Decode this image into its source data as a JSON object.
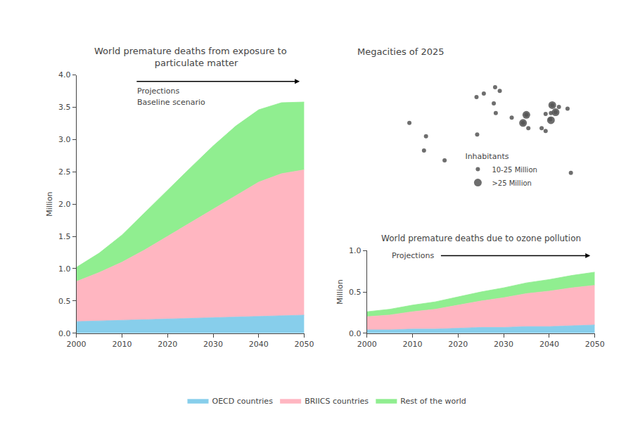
{
  "chart_data": [
    {
      "type": "area",
      "stacked": true,
      "title": "World premature deaths from exposure to\n    particulate matter",
      "ylabel": "Million",
      "x": [
        2000,
        2005,
        2010,
        2015,
        2020,
        2025,
        2030,
        2035,
        2040,
        2045,
        2050
      ],
      "series": [
        {
          "name": "OECD countries",
          "color": "#87ceeb",
          "values": [
            0.18,
            0.19,
            0.2,
            0.21,
            0.22,
            0.23,
            0.24,
            0.25,
            0.26,
            0.27,
            0.28
          ]
        },
        {
          "name": "BRIICS countries",
          "color": "#ffb6c1",
          "values": [
            0.62,
            0.75,
            0.9,
            1.08,
            1.28,
            1.48,
            1.68,
            1.88,
            2.08,
            2.2,
            2.25
          ]
        },
        {
          "name": "Rest of the world",
          "color": "#90ee90",
          "values": [
            0.22,
            0.3,
            0.42,
            0.58,
            0.72,
            0.85,
            0.98,
            1.08,
            1.12,
            1.1,
            1.05
          ]
        }
      ],
      "xlim": [
        2000,
        2050
      ],
      "xticks": [
        2000,
        2010,
        2020,
        2030,
        2040,
        2050
      ],
      "ylim": [
        0,
        4.0
      ],
      "yticks": [
        {
          "value": 0,
          "label": "0.0"
        },
        0.5,
        {
          "value": 1,
          "label": "1.0"
        },
        1.5,
        {
          "value": 2,
          "label": "2.0"
        },
        2.5,
        {
          "value": 3,
          "label": "3.0"
        },
        3.5,
        {
          "value": 4,
          "label": "4.0"
        }
      ],
      "annotations": [
        "Projections",
        "Baseline scenario"
      ],
      "legend": "bottom",
      "grid": false
    },
    {
      "type": "scatter",
      "title": "Megacities of 2025",
      "series": [
        {
          "name": "10-25 Million",
          "color": "#555555",
          "x": [
            -99,
            -74,
            -46,
            -77,
            28,
            30,
            2,
            13,
            37,
            55,
            31,
            3,
            72,
            77,
            80,
            106,
            114,
            121,
            116,
            113,
            100,
            106,
            139,
            126,
            144
          ],
          "y": [
            19,
            4,
            -23,
            -12,
            41,
            59,
            48,
            52,
            55,
            25,
            30,
            6,
            19,
            28,
            13,
            29,
            30,
            31,
            39,
            23,
            13,
            10,
            35,
            37,
            -37
          ]
        },
        {
          "name": ">25 Million",
          "color": "#555555",
          "x": [
            72,
            77,
            116,
            121,
            114
          ],
          "y": [
            19,
            28,
            39,
            31,
            22
          ]
        }
      ],
      "xlim": [
        -180,
        180
      ],
      "ylim": [
        -60,
        85
      ],
      "annotations": [
        "Inhabitants"
      ],
      "tick_labels": false,
      "grid": false
    },
    {
      "type": "area",
      "stacked": true,
      "title": "World premature deaths due to ozone pollution",
      "ylabel": "Million",
      "x": [
        2000,
        2005,
        2010,
        2015,
        2020,
        2025,
        2030,
        2035,
        2040,
        2045,
        2050
      ],
      "series": [
        {
          "name": "OECD countries",
          "color": "#87ceeb",
          "values": [
            0.04,
            0.04,
            0.05,
            0.05,
            0.06,
            0.07,
            0.07,
            0.08,
            0.08,
            0.09,
            0.1
          ]
        },
        {
          "name": "BRIICS countries",
          "color": "#ffb6c1",
          "values": [
            0.16,
            0.18,
            0.21,
            0.24,
            0.28,
            0.32,
            0.36,
            0.4,
            0.43,
            0.46,
            0.48
          ]
        },
        {
          "name": "Rest of the world",
          "color": "#90ee90",
          "values": [
            0.06,
            0.07,
            0.08,
            0.09,
            0.1,
            0.11,
            0.12,
            0.13,
            0.14,
            0.15,
            0.16
          ]
        }
      ],
      "xlim": [
        2000,
        2050
      ],
      "xticks": [
        2000,
        2010,
        2020,
        2030,
        2040,
        2050
      ],
      "ylim": [
        0,
        1.0
      ],
      "yticks": [
        {
          "value": 0,
          "label": "0.0"
        },
        0.5,
        {
          "value": 1,
          "label": "1.0"
        }
      ],
      "annotations": [
        "Projections"
      ],
      "grid": false
    }
  ]
}
